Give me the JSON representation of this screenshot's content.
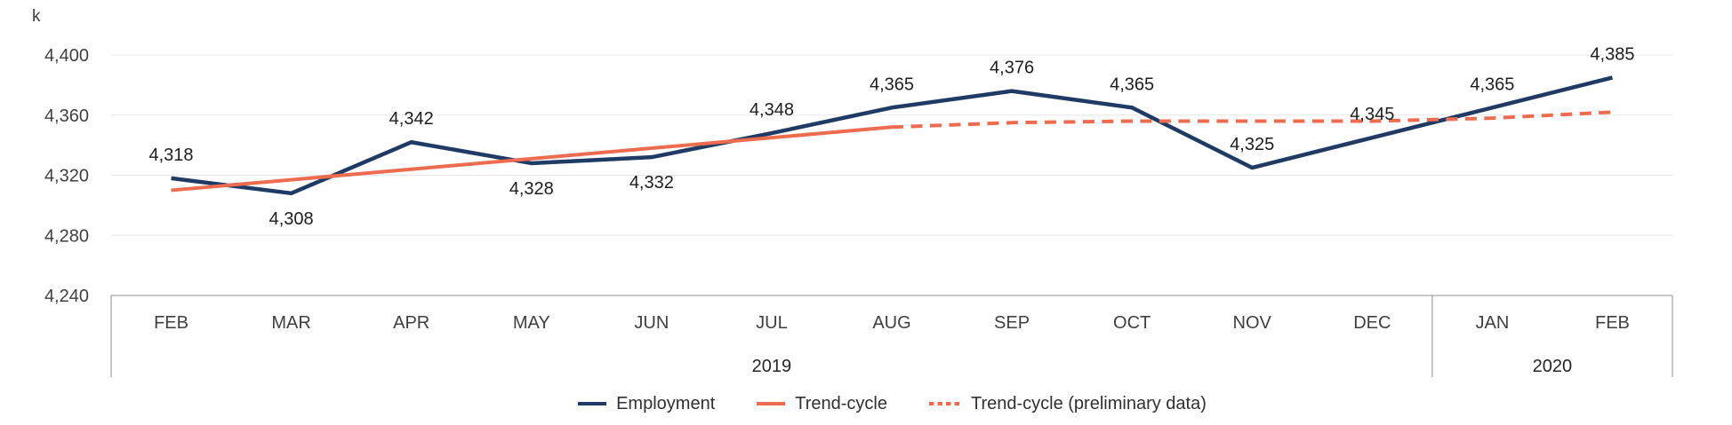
{
  "chart_data": {
    "type": "line",
    "title": "",
    "unit_label": "k",
    "categories": [
      "FEB",
      "MAR",
      "APR",
      "MAY",
      "JUN",
      "JUL",
      "AUG",
      "SEP",
      "OCT",
      "NOV",
      "DEC",
      "JAN",
      "FEB"
    ],
    "x_axis": {
      "year_groups": [
        {
          "label": "2019",
          "from": 0,
          "to": 10
        },
        {
          "label": "2020",
          "from": 11,
          "to": 12
        }
      ]
    },
    "y_axis": {
      "min": 4240,
      "max": 4400,
      "ticks": [
        {
          "label": "4,400",
          "value": 4400
        },
        {
          "label": "4,360",
          "value": 4360
        },
        {
          "label": "4,320",
          "value": 4320
        },
        {
          "label": "4,280",
          "value": 4280
        },
        {
          "label": "4,240",
          "value": 4240
        }
      ]
    },
    "grid": true,
    "legend_position": "bottom",
    "series": [
      {
        "name": "Employment",
        "color": "#1f3a64",
        "style": "solid",
        "values": [
          4318,
          4308,
          4342,
          4328,
          4332,
          4348,
          4365,
          4376,
          4365,
          4325,
          4345,
          4365,
          4385
        ],
        "value_labels": [
          "4,318",
          "4,308",
          "4,342",
          "4,328",
          "4,332",
          "4,348",
          "4,365",
          "4,376",
          "4,365",
          "4,325",
          "4,345",
          "4,365",
          "4,385"
        ],
        "label_positions": [
          "above",
          "below",
          "above",
          "below",
          "below",
          "above",
          "above",
          "above",
          "above",
          "above",
          "above",
          "above",
          "above"
        ]
      },
      {
        "name": "Trend-cycle",
        "color": "#ed6b4f",
        "style": "solid",
        "values": [
          4310,
          4317,
          4324,
          4331,
          4338,
          4345,
          4352,
          null,
          null,
          null,
          null,
          null,
          null
        ]
      },
      {
        "name": "Trend-cycle (preliminary data)",
        "color": "#ed6b4f",
        "style": "dashed",
        "values": [
          null,
          null,
          null,
          null,
          null,
          null,
          4352,
          4355,
          4356,
          4356,
          4356,
          4358,
          4362
        ]
      }
    ]
  },
  "colors": {
    "grid": "#e7e7e7",
    "axis": "#a6a6a6",
    "navy": "#1f3a64",
    "coral": "#ed6b4f"
  },
  "legend": {
    "items": [
      {
        "label": "Employment",
        "color": "#1f3a64",
        "dash": false
      },
      {
        "label": "Trend-cycle",
        "color": "#ed6b4f",
        "dash": false
      },
      {
        "label": "Trend-cycle (preliminary data)",
        "color": "#ed6b4f",
        "dash": true
      }
    ]
  }
}
